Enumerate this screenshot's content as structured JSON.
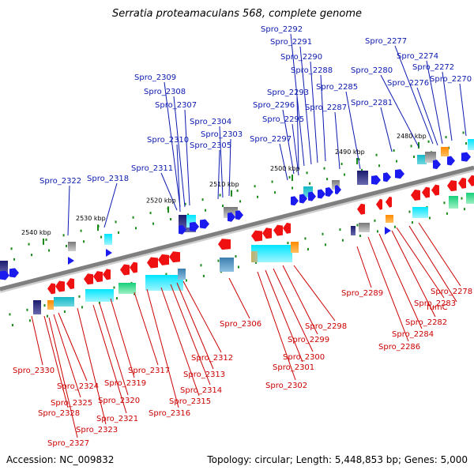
{
  "title": "Serratia proteamaculans 568, complete genome",
  "footer": {
    "accession": "Accession: NC_009832",
    "summary": "Topology: circular; Length: 5,448,853 bp; Genes: 5,000"
  },
  "colors": {
    "forward_label": "#0b19b0",
    "reverse_label": "#cc0000",
    "forward_arrow": "#1b1bef",
    "reverse_arrow": "#ef1111",
    "axis": "#7f7f7f",
    "tick": "#1a8a1a"
  },
  "scale": {
    "unit": "kbp",
    "ticks": [
      "2540 kbp",
      "2530 kbp",
      "2520 kbp",
      "2510 kbp",
      "2500 kbp",
      "2490 kbp",
      "2480 kbp"
    ]
  },
  "genes_forward": [
    "Spro_2292",
    "Spro_2291",
    "Spro_2290",
    "Spro_2288",
    "Spro_2277",
    "Spro_2274",
    "Spro_2272",
    "Spro_2270",
    "Spro_2280",
    "Spro_2276",
    "Spro_2285",
    "Spro_2293",
    "Spro_2287",
    "Spro_2281",
    "Spro_2296",
    "Spro_2295",
    "Spro_2297",
    "Spro_2309",
    "Spro_2308",
    "Spro_2307",
    "Spro_2304",
    "Spro_2303",
    "Spro_2310",
    "Spro_2305",
    "Spro_2311",
    "Spro_2322",
    "Spro_2318"
  ],
  "genes_reverse": [
    "Spro_2289",
    "Spro_2278",
    "Spro_2283",
    "fumC",
    "Spro_2282",
    "Spro_2284",
    "Spro_2286",
    "Spro_2306",
    "Spro_2298",
    "Spro_2299",
    "Spro_2300",
    "Spro_2301",
    "Spro_2302",
    "Spro_2312",
    "Spro_2313",
    "Spro_2314",
    "Spro_2315",
    "Spro_2316",
    "Spro_2317",
    "Spro_2330",
    "Spro_2324",
    "Spro_2319",
    "Spro_2325",
    "Spro_2320",
    "Spro_2328",
    "Spro_2321",
    "Spro_2323",
    "Spro_2327"
  ]
}
